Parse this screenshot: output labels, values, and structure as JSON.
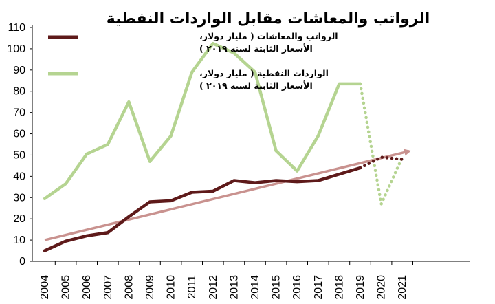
{
  "chart_data": {
    "type": "line",
    "title": "الرواتب والمعاشات مقابل الواردات النفطية",
    "xlabel": "",
    "ylabel": "",
    "ylim": [
      0,
      110
    ],
    "yticks": [
      0,
      10,
      20,
      30,
      40,
      50,
      60,
      70,
      80,
      90,
      100,
      110
    ],
    "categories": [
      "2004",
      "2005",
      "2006",
      "2007",
      "2008",
      "2009",
      "2010",
      "2011",
      "2012",
      "2013",
      "2014",
      "2015",
      "2016",
      "2017",
      "2018",
      "2019",
      "2020",
      "2021"
    ],
    "grid": false,
    "legend_position": "top-left",
    "series": [
      {
        "name": "الرواتب والمعاشات ( مليار دولار، الأسعار الثابتة لسنه ٢٠١٩)",
        "legend_lines": [
          "الرواتب والمعاشات ( مليار دولار،",
          "الأسعار الثابتة لسنه ٢٠١٩ )"
        ],
        "color": "#5e1a1a",
        "values": [
          5,
          9.5,
          12,
          13.5,
          21,
          28,
          28.5,
          32.5,
          33,
          38,
          37,
          38,
          37.5,
          38,
          41,
          44,
          49,
          48
        ],
        "projected_from": "2019"
      },
      {
        "name": "الواردات النفطية ( مليار دولار، الأسعار الثابتة لسنه ٢٠١٩)",
        "legend_lines": [
          "الواردات النفطية  ( مليار دولار،",
          "الأسعار الثابتة لسنه ٢٠١٩ )"
        ],
        "color": "#b5d491",
        "values": [
          29.5,
          36.5,
          50.5,
          55,
          75,
          47,
          59,
          89,
          102.5,
          98,
          89,
          52,
          42.5,
          59,
          83.5,
          83.5,
          27,
          49
        ],
        "projected_from": "2019"
      }
    ],
    "trend_line": {
      "color": "#c9928f",
      "from": {
        "x": "2004",
        "y": 10
      },
      "to": {
        "x": "2021",
        "y": 51.5
      }
    }
  }
}
